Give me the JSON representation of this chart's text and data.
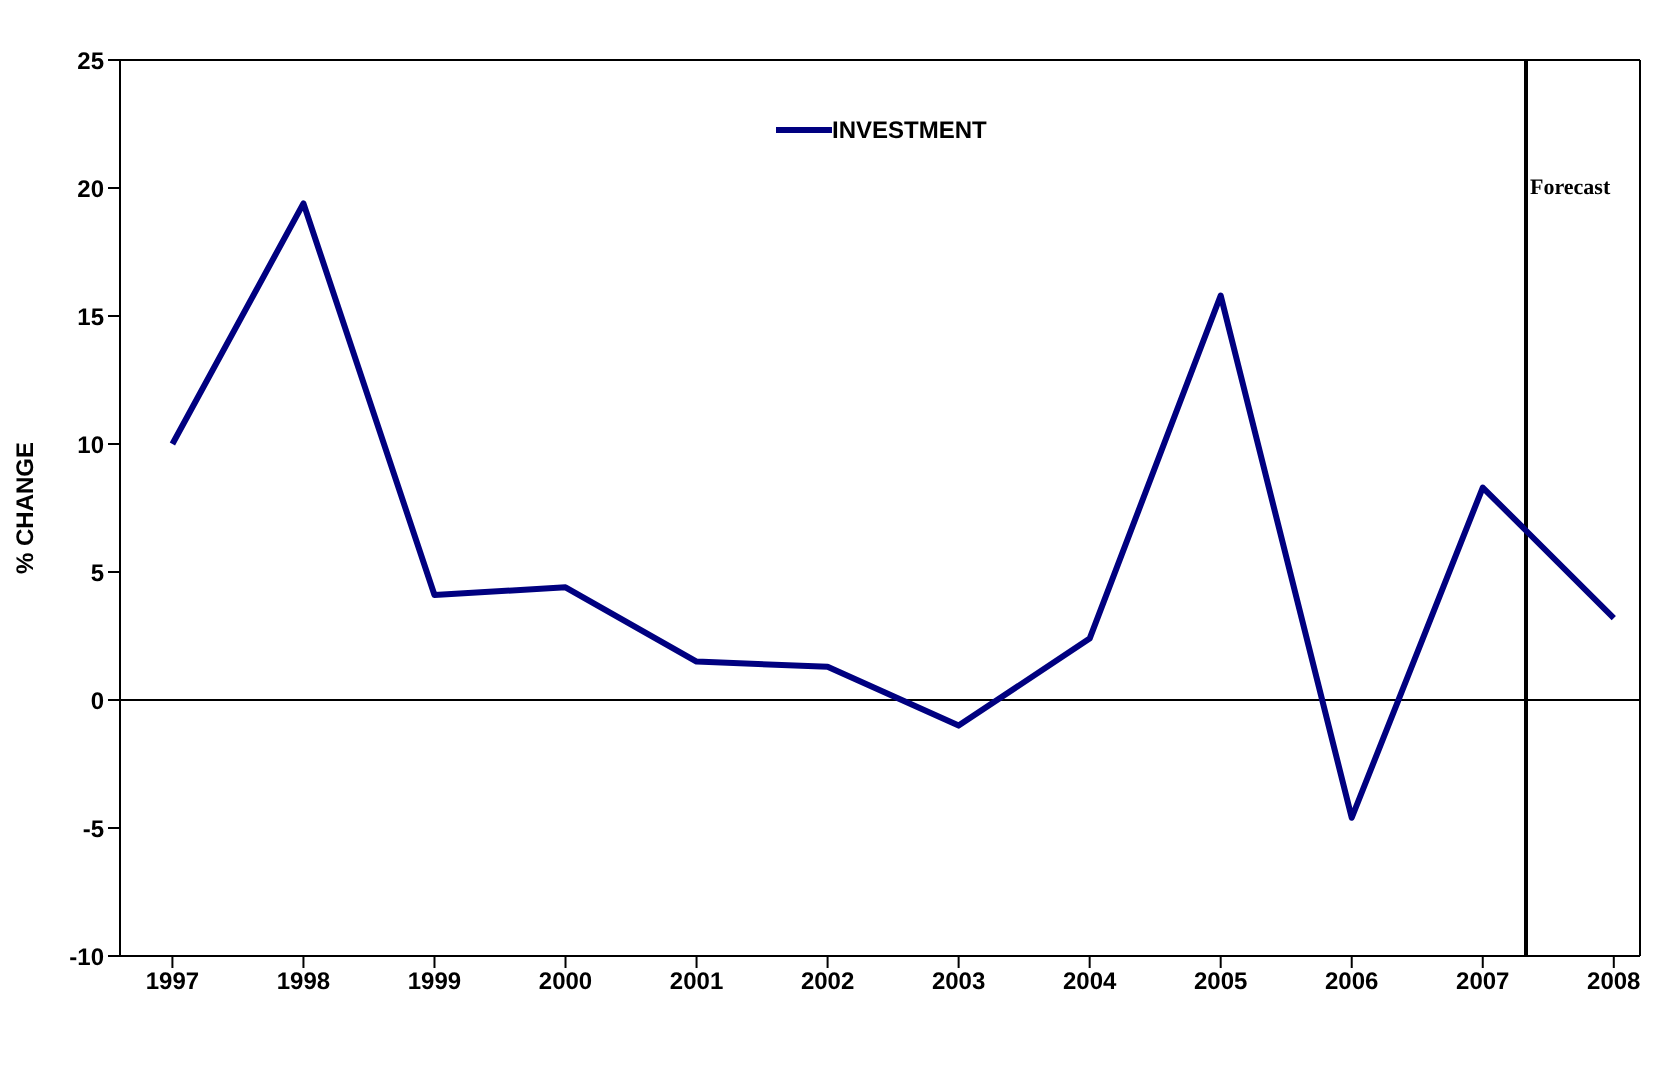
{
  "chart_data": {
    "type": "line",
    "ylabel": "% CHANGE",
    "x": [
      1997,
      1998,
      1999,
      2000,
      2001,
      2002,
      2003,
      2004,
      2005,
      2006,
      2007,
      2008
    ],
    "series": [
      {
        "name": "INVESTMENT",
        "color": "#000080",
        "values": [
          10.0,
          19.4,
          4.1,
          4.4,
          1.5,
          1.3,
          -1.0,
          2.4,
          15.8,
          -4.6,
          8.3,
          3.2
        ]
      }
    ],
    "xlim": [
      1996.6,
      2008.2
    ],
    "xticks": [
      1997,
      1998,
      1999,
      2000,
      2001,
      2002,
      2003,
      2004,
      2005,
      2006,
      2007,
      2008
    ],
    "ylim": [
      -10,
      25
    ],
    "yticks": [
      -10,
      -5,
      0,
      5,
      10,
      15,
      20,
      25
    ],
    "ref_lines": [
      {
        "axis": "y",
        "value": 0,
        "label": null,
        "color": "#000000"
      },
      {
        "axis": "x",
        "value": 2007.33,
        "label": "Forecast",
        "color": "#000000"
      }
    ],
    "grid": false,
    "legend": "top",
    "marker": "none",
    "line_style": "solid"
  }
}
